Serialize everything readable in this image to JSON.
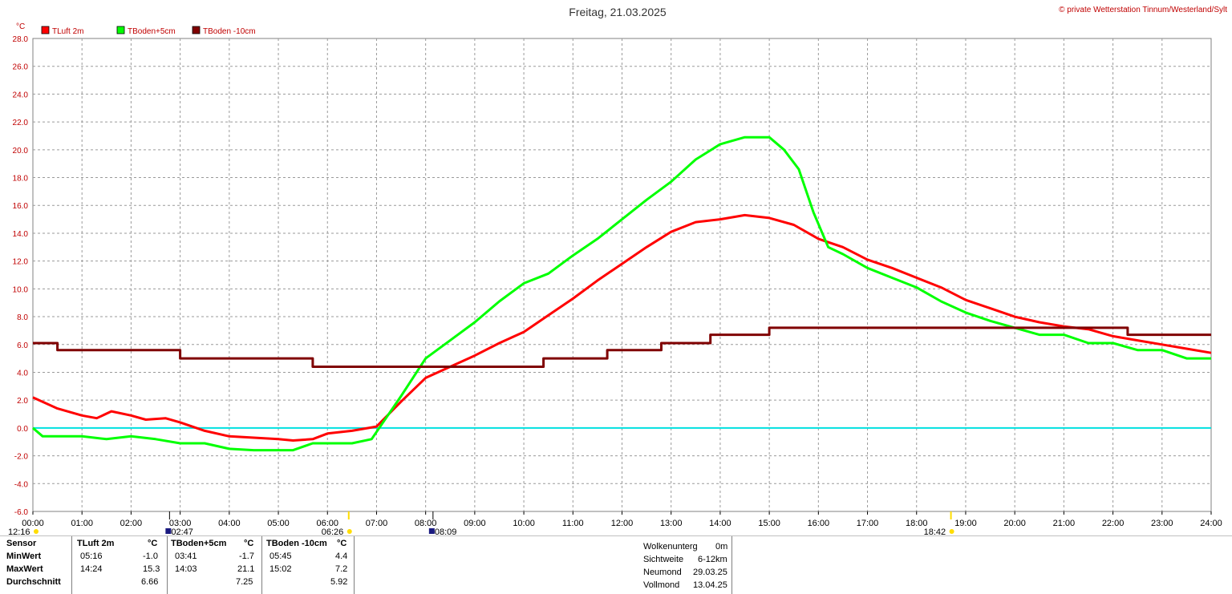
{
  "title": "Freitag, 21.03.2025",
  "copyright": "© private Wetterstation Tinnum/Westerland/Sylt",
  "unit_label": "°C",
  "legend": [
    {
      "name": "TLuft 2m",
      "color": "#ff0000"
    },
    {
      "name": "TBoden+5cm",
      "color": "#00ff00"
    },
    {
      "name": "TBoden -10cm",
      "color": "#800000"
    }
  ],
  "chart_data": {
    "type": "line",
    "title": "Freitag, 21.03.2025",
    "ylabel": "°C",
    "ylim": [
      -6,
      28
    ],
    "yticks": [
      "28.0",
      "26.0",
      "24.0",
      "22.0",
      "20.0",
      "18.0",
      "16.0",
      "14.0",
      "12.0",
      "10.0",
      "8.0",
      "6.0",
      "4.0",
      "2.0",
      "0.0",
      "-2.0",
      "-4.0",
      "-6.0"
    ],
    "xlim": [
      0,
      24
    ],
    "xticks": [
      "00:00",
      "01:00",
      "02:00",
      "03:00",
      "04:00",
      "05:00",
      "06:00",
      "07:00",
      "08:00",
      "09:00",
      "10:00",
      "11:00",
      "12:00",
      "13:00",
      "14:00",
      "15:00",
      "16:00",
      "17:00",
      "18:00",
      "19:00",
      "20:00",
      "21:00",
      "22:00",
      "23:00",
      "24:00"
    ],
    "grid": true,
    "reference_line": {
      "y": 0.0,
      "color": "#00e0e0"
    },
    "series": [
      {
        "name": "TLuft 2m",
        "color": "#ff0000",
        "x": [
          0,
          0.5,
          1,
          1.3,
          1.6,
          2,
          2.3,
          2.7,
          3,
          3.5,
          4,
          4.5,
          5,
          5.3,
          5.7,
          6,
          6.5,
          7,
          7.5,
          8,
          8.5,
          9,
          9.5,
          10,
          10.5,
          11,
          11.5,
          12,
          12.5,
          13,
          13.5,
          14,
          14.5,
          15,
          15.5,
          16,
          16.5,
          17,
          17.5,
          18,
          18.5,
          19,
          19.5,
          20,
          20.5,
          21,
          21.5,
          22,
          22.5,
          23,
          23.5,
          24
        ],
        "y": [
          2.2,
          1.4,
          0.9,
          0.7,
          1.2,
          0.9,
          0.6,
          0.7,
          0.4,
          -0.2,
          -0.6,
          -0.7,
          -0.8,
          -0.9,
          -0.8,
          -0.4,
          -0.2,
          0.1,
          1.9,
          3.6,
          4.4,
          5.2,
          6.1,
          6.9,
          8.1,
          9.3,
          10.6,
          11.8,
          13.0,
          14.1,
          14.8,
          15.0,
          15.3,
          15.1,
          14.6,
          13.6,
          13.0,
          12.1,
          11.5,
          10.8,
          10.1,
          9.2,
          8.6,
          8.0,
          7.6,
          7.3,
          7.1,
          6.6,
          6.3,
          6.0,
          5.7,
          5.4
        ]
      },
      {
        "name": "TBoden+5cm",
        "color": "#00ff00",
        "x": [
          0,
          0.2,
          0.6,
          1,
          1.5,
          2,
          2.5,
          3,
          3.5,
          4,
          4.5,
          5,
          5.3,
          5.7,
          6,
          6.5,
          6.9,
          7.5,
          8,
          8.5,
          9,
          9.5,
          10,
          10.5,
          11,
          11.5,
          12,
          12.5,
          13,
          13.5,
          14,
          14.5,
          15,
          15.3,
          15.6,
          15.9,
          16.2,
          16.5,
          17,
          17.5,
          18,
          18.5,
          19,
          19.5,
          20,
          20.5,
          21,
          21.5,
          22,
          22.5,
          23,
          23.5,
          24
        ],
        "y": [
          0.0,
          -0.6,
          -0.6,
          -0.6,
          -0.8,
          -0.6,
          -0.8,
          -1.1,
          -1.1,
          -1.5,
          -1.6,
          -1.6,
          -1.6,
          -1.1,
          -1.1,
          -1.1,
          -0.8,
          2.3,
          5.0,
          6.3,
          7.6,
          9.1,
          10.4,
          11.1,
          12.4,
          13.6,
          15.0,
          16.4,
          17.7,
          19.3,
          20.4,
          20.9,
          20.9,
          20.0,
          18.6,
          15.5,
          13.0,
          12.5,
          11.5,
          10.8,
          10.1,
          9.1,
          8.3,
          7.7,
          7.2,
          6.7,
          6.7,
          6.1,
          6.1,
          5.6,
          5.6,
          5.0,
          5.0
        ]
      },
      {
        "name": "TBoden -10cm",
        "color": "#800000",
        "x": [
          0,
          0.5,
          0.5,
          3,
          3,
          5.7,
          5.7,
          10.4,
          10.4,
          11.7,
          11.7,
          12.8,
          12.8,
          13.8,
          13.8,
          15,
          15,
          22.3,
          22.3,
          24
        ],
        "y": [
          6.1,
          6.1,
          5.6,
          5.6,
          5.0,
          5.0,
          4.4,
          4.4,
          5.0,
          5.0,
          5.6,
          5.6,
          6.1,
          6.1,
          6.7,
          6.7,
          7.2,
          7.2,
          6.7,
          6.7
        ]
      }
    ]
  },
  "sun_moon": {
    "moonset": "12:16",
    "moonrise_marker": "02:47",
    "sunrise": "06:26",
    "moon_marker": "08:09",
    "sunset": "18:42"
  },
  "stats": {
    "sensor_label": "Sensor",
    "min_label": "MinWert",
    "max_label": "MaxWert",
    "avg_label": "Durchschnitt",
    "cols": [
      {
        "name": "TLuft 2m",
        "unit": "°C",
        "min_time": "05:16",
        "min": "-1.0",
        "max_time": "14:24",
        "max": "15.3",
        "avg": "6.66"
      },
      {
        "name": "TBoden+5cm",
        "unit": "°C",
        "min_time": "03:41",
        "min": "-1.7",
        "max_time": "14:03",
        "max": "21.1",
        "avg": "7.25"
      },
      {
        "name": "TBoden -10cm",
        "unit": "°C",
        "min_time": "05:45",
        "min": "4.4",
        "max_time": "15:02",
        "max": "7.2",
        "avg": "5.92"
      }
    ]
  },
  "weather_info": [
    {
      "label": "Wolkenunterg",
      "value": "0m"
    },
    {
      "label": "Sichtweite",
      "value": "6-12km"
    },
    {
      "label": "Neumond",
      "value": "29.03.25"
    },
    {
      "label": "Vollmond",
      "value": "13.04.25"
    }
  ]
}
